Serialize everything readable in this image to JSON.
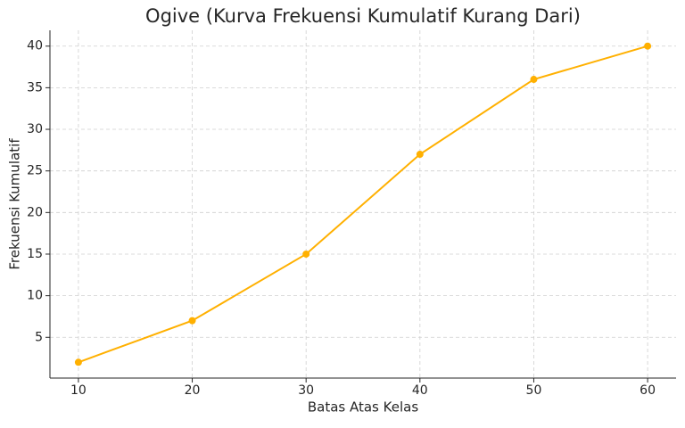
{
  "chart_data": {
    "type": "line",
    "title": "Ogive (Kurva Frekuensi Kumulatif Kurang Dari)",
    "x_label": "Batas Atas Kelas",
    "y_label": "Frekuensi Kumulatif",
    "x": [
      10,
      20,
      30,
      40,
      50,
      60
    ],
    "values": [
      2,
      7,
      15,
      27,
      36,
      40
    ],
    "color": "#ffb000",
    "xlim": [
      7.5,
      62.5
    ],
    "xticks": [
      10,
      20,
      30,
      40,
      50,
      60
    ],
    "ylim": [
      0.1,
      41.9
    ],
    "yticks": [
      5,
      10,
      15,
      20,
      25,
      30,
      35,
      40
    ],
    "grid": true
  }
}
